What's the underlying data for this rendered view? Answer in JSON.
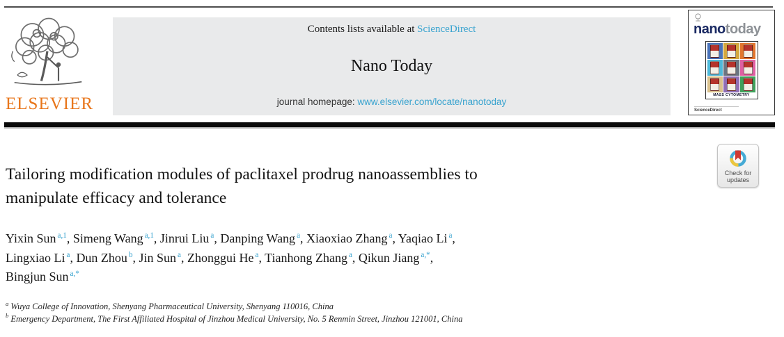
{
  "theme": {
    "link": "#38a3cf",
    "elsevier_orange": "#e8761b",
    "banner_bg": "#e9eaeb",
    "bar_black": "#0a0a0a",
    "text": "#1c1c1c",
    "nano_navy": "#1b2a63",
    "today_gray": "#8d9196"
  },
  "banner": {
    "contents_prefix": "Contents lists available at ",
    "sciencedirect_label": "ScienceDirect",
    "journal_name": "Nano Today",
    "homepage_prefix": "journal homepage: ",
    "homepage_url": "www.elsevier.com/locate/nanotoday"
  },
  "elsevier": {
    "wordmark": "ELSEVIER"
  },
  "cover": {
    "masthead_nano": "nano",
    "masthead_today": "today",
    "strip_label": "MASS CYTOMETRY",
    "footer_label": "ScienceDirect",
    "can_colors": [
      "#4a72b8",
      "#d4a73e",
      "#e2762e",
      "#4fb8d8",
      "#6b7480",
      "#df5fa2",
      "#d9c08c",
      "#8f6db4",
      "#3fa05a"
    ]
  },
  "article": {
    "title_lines": [
      "Tailoring modification modules of paclitaxel prodrug nanoassemblies to",
      "manipulate efficacy and tolerance"
    ],
    "check_badge": {
      "line1": "Check for",
      "line2": "updates"
    },
    "author_lines": [
      {
        "authors": [
          {
            "name": "Yixin Sun",
            "sup": "a,1"
          },
          {
            "name": "Simeng Wang",
            "sup": "a,1"
          },
          {
            "name": "Jinrui Liu",
            "sup": "a"
          },
          {
            "name": "Danping Wang",
            "sup": "a"
          },
          {
            "name": "Xiaoxiao Zhang",
            "sup": "a"
          },
          {
            "name": "Yaqiao Li",
            "sup": "a"
          }
        ],
        "end_comma": true
      },
      {
        "authors": [
          {
            "name": "Lingxiao Li",
            "sup": "a"
          },
          {
            "name": "Dun Zhou",
            "sup": "b"
          },
          {
            "name": "Jin Sun",
            "sup": "a"
          },
          {
            "name": "Zhonggui He",
            "sup": "a"
          },
          {
            "name": "Tianhong Zhang",
            "sup": "a"
          },
          {
            "name": "Qikun Jiang",
            "sup": "a,*"
          }
        ],
        "end_comma": true
      },
      {
        "authors": [
          {
            "name": "Bingjun Sun",
            "sup": "a,*"
          }
        ],
        "end_comma": false
      }
    ],
    "affiliations": [
      {
        "marker": "a",
        "text": "Wuya College of Innovation, Shenyang Pharmaceutical University, Shenyang 110016, China"
      },
      {
        "marker": "b",
        "text": "Emergency Department, The First Affiliated Hospital of Jinzhou Medical University, No. 5 Renmin Street, Jinzhou 121001, China"
      }
    ]
  }
}
